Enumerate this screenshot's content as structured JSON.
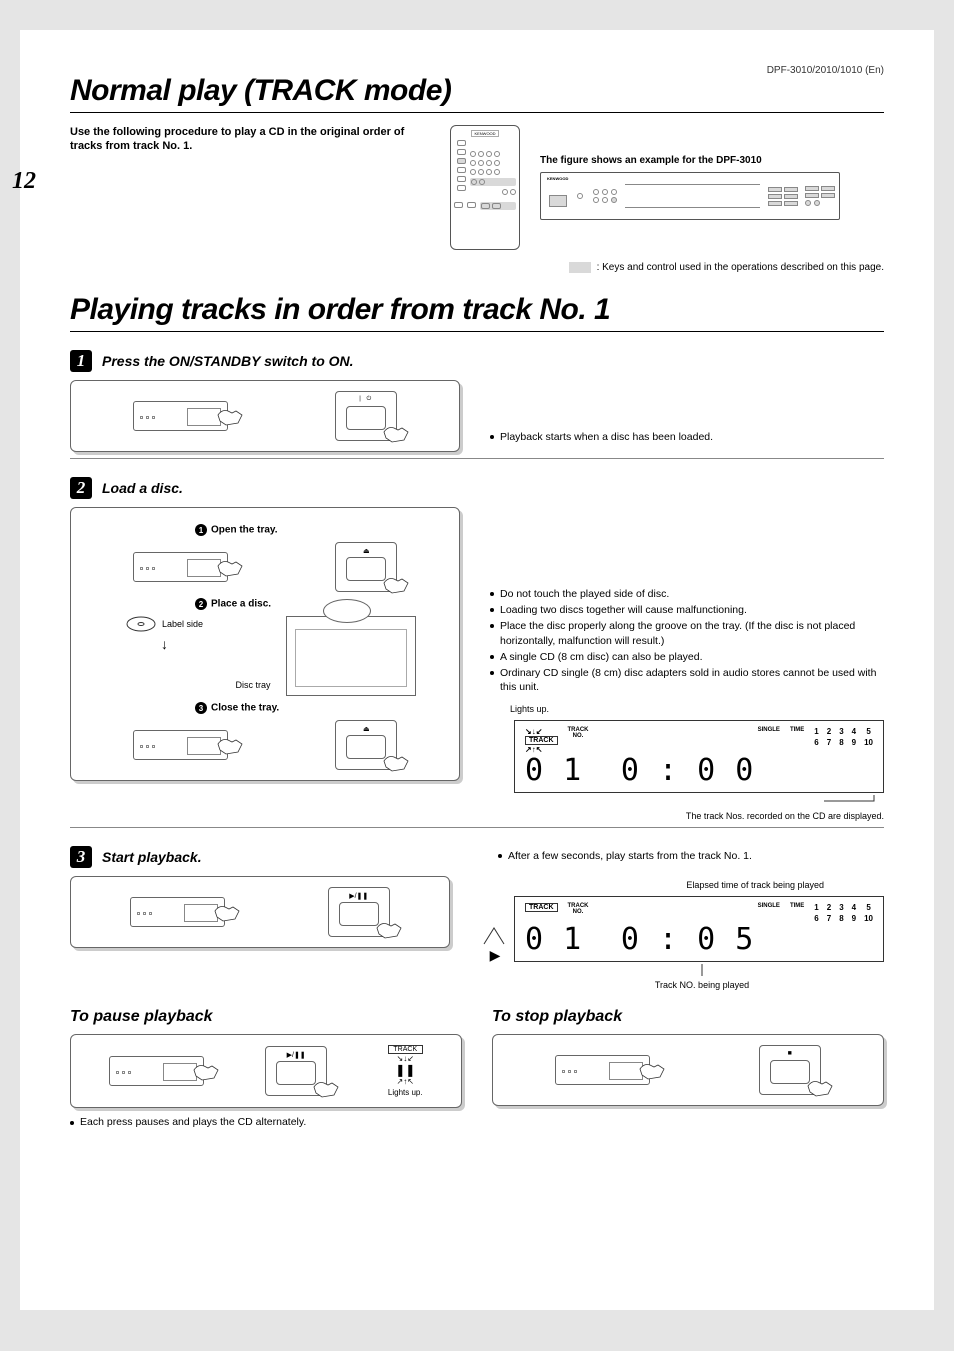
{
  "page_number": "12",
  "model_id": "DPF-3010/2010/1010 (En)",
  "title_main": "Normal play  (TRACK mode)",
  "intro": "Use the following procedure to play a CD in the original order of tracks from track No. 1.",
  "fig_caption": "The figure shows an example for the DPF-3010",
  "legend_text": ": Keys and control used in the operations described on this page.",
  "title_sub": "Playing tracks in order from track No. 1",
  "step1": {
    "num": "1",
    "title": "Press the ON/STANDBY switch to ON.",
    "remote_label": "",
    "note": "Playback starts when a disc has been loaded."
  },
  "step2": {
    "num": "2",
    "title": "Load a disc.",
    "ss1": "Open the tray.",
    "ss2": "Place a disc.",
    "ss3": "Close the tray.",
    "label_side": "Label side",
    "disc_tray": "Disc tray",
    "notes": [
      "Do not touch the played side of disc.",
      "Loading two discs together will cause malfunctioning.",
      "Place the disc properly along the groove on the tray. (If the disc is not placed horizontally, malfunction will result.)",
      "A single CD (8 cm disc) can also be played.",
      "Ordinary CD single (8 cm) disc adapters sold in audio stores cannot be used with this unit."
    ],
    "lights_up": "Lights up.",
    "lcd1": {
      "track_badge": "TRACK",
      "trackno_lbl": "TRACK\nNO.",
      "single_lbl": "SINGLE",
      "time_lbl": "TIME",
      "nums_top": [
        "1",
        "2",
        "3",
        "4",
        "5"
      ],
      "nums_bot": [
        "6",
        "7",
        "8",
        "9",
        "10"
      ],
      "trackno_val": "0 1",
      "time_val": "0 : 0 0"
    },
    "caption_after": "The track Nos. recorded on the CD are displayed."
  },
  "step3": {
    "num": "3",
    "title": "Start playback.",
    "before_note": "After a few seconds, play starts from the track No. 1.",
    "elapsed_caption": "Elapsed time of track being played",
    "lcd2": {
      "track_badge": "TRACK",
      "trackno_lbl": "TRACK\nNO.",
      "single_lbl": "SINGLE",
      "time_lbl": "TIME",
      "nums_top": [
        "1",
        "2",
        "3",
        "4",
        "5"
      ],
      "nums_bot": [
        "6",
        "7",
        "8",
        "9",
        "10"
      ],
      "trackno_val": "0 1",
      "time_val": "0 : 0 5"
    },
    "playing_caption": "Track NO. being played",
    "remote_btn": "❚❚"
  },
  "pause": {
    "heading": "To pause playback",
    "track_badge": "TRACK",
    "lights_up": "Lights up.",
    "footnote": "Each press pauses and plays the CD alternately."
  },
  "stop": {
    "heading": "To stop playback"
  },
  "icons": {
    "power": "⏻",
    "eject": "⏏",
    "play_pause": "▶/❚❚",
    "pause": "❚❚",
    "stop": "■",
    "play": "▶"
  },
  "colors": {
    "highlight": "#d9d9d9",
    "border": "#666666",
    "text": "#000000",
    "page_bg": "#ffffff",
    "outer_bg": "#e5e5e5"
  }
}
